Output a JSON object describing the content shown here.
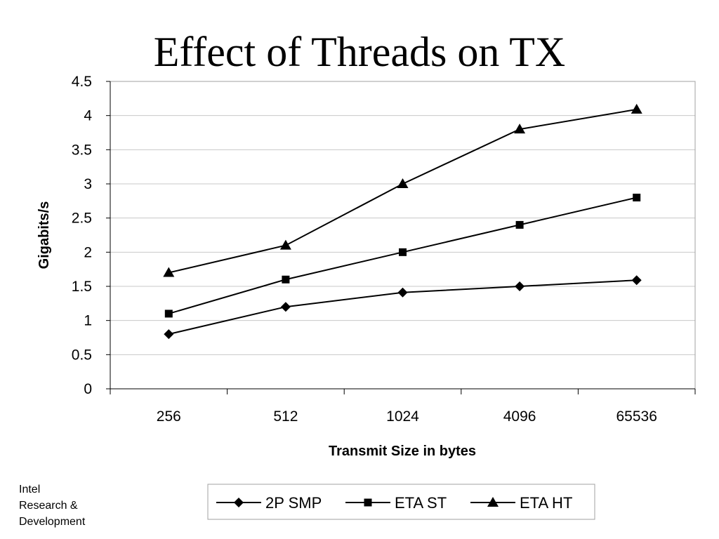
{
  "title": "Effect of Threads on TX",
  "footer": {
    "line1": "Intel",
    "line2": "Research &",
    "line3": "Development"
  },
  "chart_data": {
    "type": "line",
    "title": "Effect of Threads on TX",
    "xlabel": "Transmit Size in bytes",
    "ylabel": "Gigabits/s",
    "categories": [
      "256",
      "512",
      "1024",
      "4096",
      "65536"
    ],
    "ylim": [
      0,
      4.5
    ],
    "yticks": [
      "0",
      "0.5",
      "1",
      "1.5",
      "2",
      "2.5",
      "3",
      "3.5",
      "4",
      "4.5"
    ],
    "grid": true,
    "legend_position": "bottom",
    "series": [
      {
        "name": "2P SMP",
        "marker": "diamond",
        "values": [
          0.8,
          1.2,
          1.41,
          1.5,
          1.59
        ]
      },
      {
        "name": "ETA ST",
        "marker": "square",
        "values": [
          1.1,
          1.6,
          2.0,
          2.4,
          2.8
        ]
      },
      {
        "name": "ETA HT",
        "marker": "triangle",
        "values": [
          1.7,
          2.1,
          3.0,
          3.8,
          4.09
        ]
      }
    ]
  }
}
